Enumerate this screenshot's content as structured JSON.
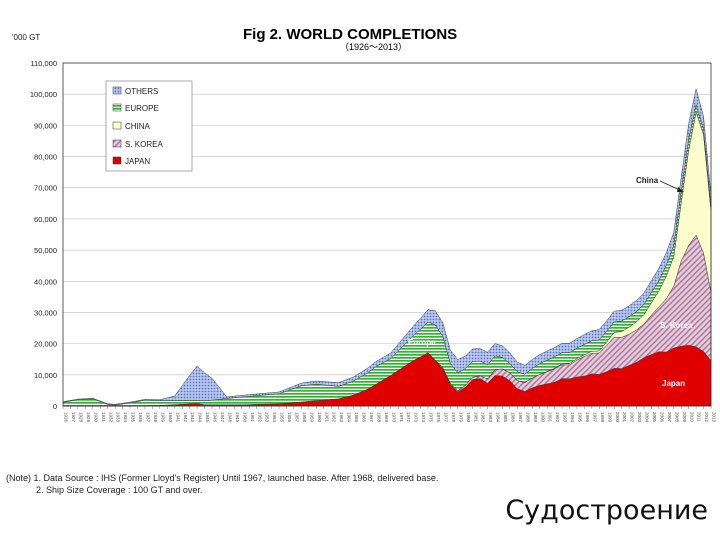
{
  "chart_data": {
    "type": "area",
    "stacked": true,
    "title": "Fig 2.  WORLD COMPLETIONS",
    "subtitle": "（1926～2013）",
    "ylabel": "'000 GT",
    "ylim": [
      0,
      110000
    ],
    "yticks": [
      0,
      10000,
      20000,
      30000,
      40000,
      50000,
      60000,
      70000,
      80000,
      90000,
      100000,
      110000
    ],
    "ytick_labels": [
      "0",
      "10,000",
      "20,000",
      "30,000",
      "40,000",
      "50,000",
      "60,000",
      "70,000",
      "80,000",
      "90,000",
      "100,000",
      "110,000"
    ],
    "x_first": 1926,
    "x_last": 2013,
    "legend": [
      {
        "key": "others",
        "label": "OTHERS"
      },
      {
        "key": "europe",
        "label": "EUROPE"
      },
      {
        "key": "china",
        "label": "CHINA"
      },
      {
        "key": "korea",
        "label": "S. KOREA"
      },
      {
        "key": "japan",
        "label": "JAPAN"
      }
    ],
    "annotations": {
      "china": "China",
      "europe": "Europe",
      "korea": "S. Korea",
      "japan": "Japan"
    },
    "colors": {
      "japan": "#e00000",
      "korea": "#c8a0b8",
      "china": "#ffffc8",
      "europe": "#3cc83c",
      "others": "#90a8e0"
    },
    "series": [
      {
        "key": "japan",
        "points": [
          [
            1926,
            0
          ],
          [
            1930,
            0
          ],
          [
            1936,
            0
          ],
          [
            1940,
            300
          ],
          [
            1944,
            800
          ],
          [
            1945,
            400
          ],
          [
            1950,
            400
          ],
          [
            1955,
            700
          ],
          [
            1960,
            1700
          ],
          [
            1963,
            2300
          ],
          [
            1965,
            3500
          ],
          [
            1967,
            5500
          ],
          [
            1970,
            9800
          ],
          [
            1973,
            14500
          ],
          [
            1975,
            17000
          ],
          [
            1977,
            12000
          ],
          [
            1978,
            7000
          ],
          [
            1979,
            4500
          ],
          [
            1980,
            6000
          ],
          [
            1981,
            8500
          ],
          [
            1982,
            8800
          ],
          [
            1983,
            7300
          ],
          [
            1984,
            9800
          ],
          [
            1985,
            9600
          ],
          [
            1986,
            8100
          ],
          [
            1987,
            5500
          ],
          [
            1988,
            4700
          ],
          [
            1989,
            5800
          ],
          [
            1990,
            6600
          ],
          [
            1991,
            7100
          ],
          [
            1992,
            7600
          ],
          [
            1993,
            8800
          ],
          [
            1994,
            8700
          ],
          [
            1995,
            9300
          ],
          [
            1996,
            9600
          ],
          [
            1997,
            10300
          ],
          [
            1998,
            10100
          ],
          [
            1999,
            11000
          ],
          [
            2000,
            12100
          ],
          [
            2001,
            12000
          ],
          [
            2002,
            13000
          ],
          [
            2003,
            14000
          ],
          [
            2004,
            15500
          ],
          [
            2005,
            16500
          ],
          [
            2006,
            17400
          ],
          [
            2007,
            17300
          ],
          [
            2008,
            18600
          ],
          [
            2009,
            19200
          ],
          [
            2010,
            19500
          ],
          [
            2011,
            19000
          ],
          [
            2012,
            17500
          ],
          [
            2013,
            14500
          ]
        ]
      },
      {
        "key": "korea",
        "points": [
          [
            1926,
            0
          ],
          [
            1974,
            0
          ],
          [
            1976,
            200
          ],
          [
            1979,
            400
          ],
          [
            1982,
            900
          ],
          [
            1985,
            2300
          ],
          [
            1988,
            2800
          ],
          [
            1990,
            3500
          ],
          [
            1992,
            4300
          ],
          [
            1994,
            4500
          ],
          [
            1996,
            6300
          ],
          [
            1998,
            6900
          ],
          [
            2000,
            10000
          ],
          [
            2002,
            10000
          ],
          [
            2004,
            10800
          ],
          [
            2006,
            14400
          ],
          [
            2008,
            19800
          ],
          [
            2009,
            27300
          ],
          [
            2010,
            32000
          ],
          [
            2011,
            35800
          ],
          [
            2012,
            31500
          ],
          [
            2013,
            22000
          ]
        ]
      },
      {
        "key": "china",
        "points": [
          [
            1926,
            0
          ],
          [
            1990,
            0
          ],
          [
            1994,
            400
          ],
          [
            1998,
            700
          ],
          [
            2000,
            1500
          ],
          [
            2002,
            2300
          ],
          [
            2004,
            3000
          ],
          [
            2006,
            5100
          ],
          [
            2008,
            9500
          ],
          [
            2009,
            18700
          ],
          [
            2010,
            30500
          ],
          [
            2011,
            39400
          ],
          [
            2012,
            38000
          ],
          [
            2013,
            26000
          ]
        ]
      },
      {
        "key": "europe",
        "points": [
          [
            1926,
            1200
          ],
          [
            1928,
            2000
          ],
          [
            1930,
            2300
          ],
          [
            1932,
            500
          ],
          [
            1933,
            300
          ],
          [
            1935,
            1000
          ],
          [
            1937,
            1800
          ],
          [
            1939,
            1500
          ],
          [
            1944,
            1000
          ],
          [
            1946,
            1500
          ],
          [
            1950,
            2500
          ],
          [
            1955,
            3200
          ],
          [
            1958,
            5200
          ],
          [
            1960,
            5300
          ],
          [
            1963,
            4000
          ],
          [
            1965,
            4500
          ],
          [
            1968,
            5700
          ],
          [
            1970,
            5400
          ],
          [
            1973,
            8000
          ],
          [
            1975,
            9800
          ],
          [
            1976,
            11300
          ],
          [
            1977,
            10000
          ],
          [
            1978,
            6300
          ],
          [
            1979,
            5800
          ],
          [
            1980,
            5400
          ],
          [
            1982,
            4700
          ],
          [
            1984,
            4400
          ],
          [
            1986,
            3000
          ],
          [
            1988,
            2700
          ],
          [
            1990,
            3500
          ],
          [
            1992,
            3700
          ],
          [
            1994,
            3500
          ],
          [
            1996,
            3300
          ],
          [
            1998,
            3500
          ],
          [
            2000,
            3400
          ],
          [
            2002,
            3300
          ],
          [
            2004,
            3300
          ],
          [
            2006,
            3300
          ],
          [
            2008,
            3600
          ],
          [
            2010,
            3500
          ],
          [
            2011,
            2500
          ],
          [
            2012,
            1800
          ],
          [
            2013,
            1500
          ]
        ]
      },
      {
        "key": "others",
        "points": [
          [
            1926,
            200
          ],
          [
            1930,
            200
          ],
          [
            1939,
            300
          ],
          [
            1941,
            1500
          ],
          [
            1943,
            8000
          ],
          [
            1944,
            11000
          ],
          [
            1946,
            7000
          ],
          [
            1948,
            500
          ],
          [
            1955,
            600
          ],
          [
            1960,
            1000
          ],
          [
            1965,
            1300
          ],
          [
            1970,
            1800
          ],
          [
            1973,
            3000
          ],
          [
            1975,
            4000
          ],
          [
            1976,
            4500
          ],
          [
            1978,
            4300
          ],
          [
            1980,
            4000
          ],
          [
            1984,
            4000
          ],
          [
            1988,
            2800
          ],
          [
            1990,
            2900
          ],
          [
            1994,
            3000
          ],
          [
            1998,
            3300
          ],
          [
            2000,
            3400
          ],
          [
            2004,
            3600
          ],
          [
            2008,
            4200
          ],
          [
            2010,
            5000
          ],
          [
            2011,
            5000
          ],
          [
            2012,
            4000
          ],
          [
            2013,
            3500
          ]
        ]
      }
    ]
  },
  "notes": [
    "(Note) 1.  Data Source : IHS (Former Lloyd's Register)   Until 1967, launched base.  After 1968, delivered base.",
    "2.  Ship Size Coverage : 100 GT and over."
  ],
  "caption": "Судостроение"
}
